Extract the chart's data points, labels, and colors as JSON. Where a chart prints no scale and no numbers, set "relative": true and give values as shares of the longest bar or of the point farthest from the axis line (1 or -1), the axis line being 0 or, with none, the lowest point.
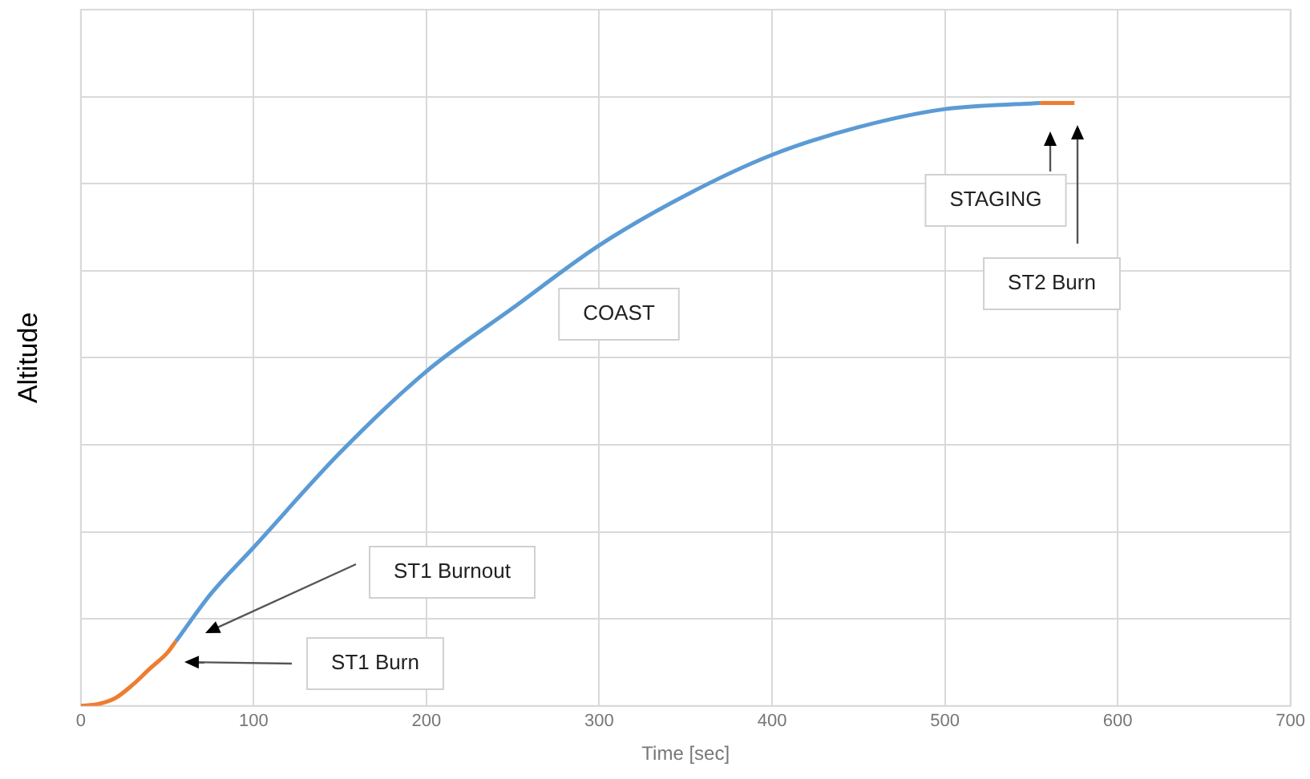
{
  "chart_data": {
    "type": "line",
    "xlabel": "Time [sec]",
    "ylabel": "Altitude",
    "relative": true,
    "grid": true,
    "legend": false,
    "tick_labels": "x",
    "marker": "none",
    "line_style": "solid",
    "xlim": [
      0,
      700
    ],
    "xticks": [
      0,
      100,
      200,
      300,
      400,
      500,
      600,
      700
    ],
    "series": [
      {
        "color": "#ed7d31",
        "x": [
          0,
          10,
          20,
          30,
          40,
          50,
          55
        ],
        "values": [
          0,
          0.003,
          0.013,
          0.035,
          0.062,
          0.088,
          0.107
        ]
      },
      {
        "color": "#5b9bd5",
        "x": [
          55,
          75,
          100,
          150,
          200,
          250,
          300,
          350,
          400,
          450,
          500,
          555
        ],
        "values": [
          0.107,
          0.185,
          0.263,
          0.42,
          0.555,
          0.66,
          0.764,
          0.847,
          0.914,
          0.96,
          0.99,
          1
        ]
      },
      {
        "color": "#ed7d31",
        "x": [
          555,
          575
        ],
        "values": [
          1,
          1
        ]
      }
    ],
    "annotations": [
      "ST1 Burnout",
      "ST1 Burn",
      "COAST",
      "STAGING",
      "ST2 Burn"
    ]
  }
}
